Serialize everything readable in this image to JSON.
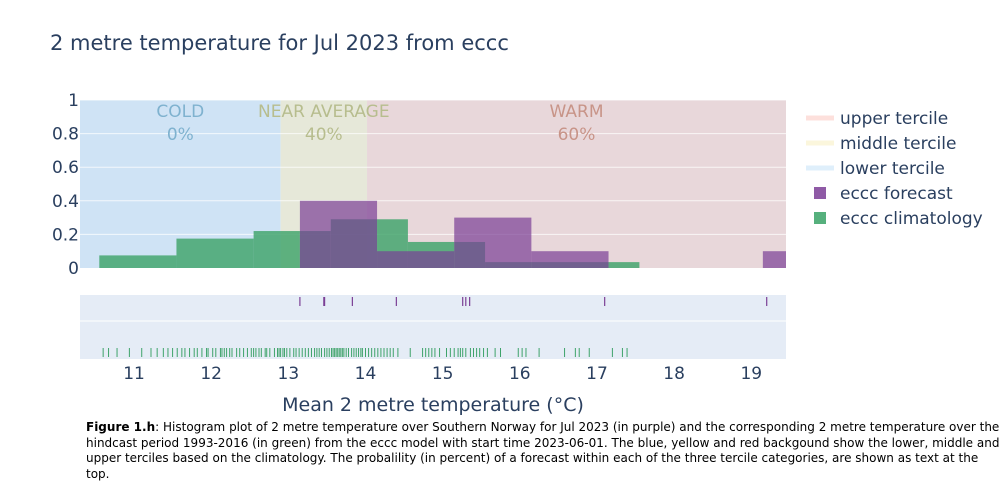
{
  "chart_data": {
    "type": "bar",
    "title": "2 metre temperature for Jul 2023 from eccc",
    "xlabel": "Mean 2 metre temperature (°C)",
    "ylabel": "",
    "xlim": [
      10.3,
      19.45
    ],
    "ylim": [
      0,
      1
    ],
    "x_ticks": [
      11,
      12,
      13,
      14,
      15,
      16,
      17,
      18,
      19
    ],
    "y_ticks": [
      0,
      0.2,
      0.4,
      0.6,
      0.8,
      1
    ],
    "y_tick_labels": [
      "0",
      "0.2",
      "0.4",
      "0.6",
      "0.8",
      "1"
    ],
    "grid": true,
    "legend_position": "right",
    "terciles": [
      {
        "label": "COLD",
        "percent": "0%",
        "from": 10.3,
        "to": 12.9,
        "fill": "#cfe3f5",
        "text_color": "#7fb2cf"
      },
      {
        "label": "NEAR AVERAGE",
        "percent": "40%",
        "from": 12.9,
        "to": 14.02,
        "fill": "#e6e8d9",
        "text_color": "#b7bd8e"
      },
      {
        "label": "WARM",
        "percent": "60%",
        "from": 14.02,
        "to": 19.45,
        "fill": "#e8d7da",
        "text_color": "#c89488"
      }
    ],
    "series": [
      {
        "name": "eccc climatology",
        "color": "#3ea36a",
        "bins": [
          {
            "x0": 10.55,
            "x1": 11.55,
            "y": 0.075
          },
          {
            "x0": 11.55,
            "x1": 12.55,
            "y": 0.175
          },
          {
            "x0": 12.55,
            "x1": 13.15,
            "y": 0.22
          },
          {
            "x0": 13.15,
            "x1": 13.55,
            "y": 0.22
          },
          {
            "x0": 13.55,
            "x1": 14.15,
            "y": 0.29
          },
          {
            "x0": 14.15,
            "x1": 14.55,
            "y": 0.29
          },
          {
            "x0": 14.55,
            "x1": 15.15,
            "y": 0.155
          },
          {
            "x0": 15.15,
            "x1": 15.55,
            "y": 0.155
          },
          {
            "x0": 15.55,
            "x1": 16.15,
            "y": 0.035
          },
          {
            "x0": 16.15,
            "x1": 17.15,
            "y": 0.035
          },
          {
            "x0": 17.15,
            "x1": 17.55,
            "y": 0.035
          }
        ],
        "rug": [
          10.6,
          10.67,
          10.78,
          10.94,
          11.1,
          11.22,
          11.3,
          11.38,
          11.44,
          11.5,
          11.56,
          11.62,
          11.66,
          11.72,
          11.78,
          11.82,
          11.88,
          11.94,
          11.96,
          12.02,
          12.06,
          12.12,
          12.14,
          12.17,
          12.2,
          12.24,
          12.27,
          12.33,
          12.37,
          12.42,
          12.47,
          12.52,
          12.55,
          12.58,
          12.62,
          12.65,
          12.7,
          12.72,
          12.76,
          12.82,
          12.86,
          12.88,
          12.9,
          12.93,
          12.95,
          12.98,
          13.02,
          13.07,
          13.1,
          13.14,
          13.18,
          13.22,
          13.26,
          13.3,
          13.34,
          13.37,
          13.4,
          13.43,
          13.47,
          13.5,
          13.53,
          13.56,
          13.58,
          13.6,
          13.62,
          13.64,
          13.66,
          13.68,
          13.7,
          13.72,
          13.75,
          13.78,
          13.82,
          13.85,
          13.88,
          13.91,
          13.94,
          13.96,
          14.0,
          14.04,
          14.08,
          14.12,
          14.16,
          14.2,
          14.24,
          14.28,
          14.32,
          14.36,
          14.42,
          14.58,
          14.74,
          14.78,
          14.82,
          14.86,
          14.9,
          14.96,
          15.05,
          15.1,
          15.15,
          15.2,
          15.23,
          15.26,
          15.3,
          15.36,
          15.4,
          15.44,
          15.48,
          15.53,
          15.58,
          15.68,
          15.75,
          15.98,
          16.03,
          16.08,
          16.25,
          16.58,
          16.72,
          16.77,
          16.9,
          17.2,
          17.33,
          17.39
        ]
      },
      {
        "name": "eccc forecast",
        "color": "#7b3f95",
        "bins": [
          {
            "x0": 13.15,
            "x1": 14.15,
            "y": 0.4
          },
          {
            "x0": 14.15,
            "x1": 15.15,
            "y": 0.1
          },
          {
            "x0": 15.15,
            "x1": 16.15,
            "y": 0.3
          },
          {
            "x0": 16.15,
            "x1": 17.15,
            "y": 0.1
          },
          {
            "x0": 19.15,
            "x1": 20.15,
            "y": 0.1
          }
        ],
        "rug": [
          13.15,
          13.46,
          13.47,
          13.83,
          14.4,
          15.26,
          15.3,
          15.35,
          17.1,
          19.2
        ]
      }
    ],
    "legend": [
      {
        "label": "upper tercile",
        "kind": "line",
        "color": "#fde0dc"
      },
      {
        "label": "middle tercile",
        "kind": "line",
        "color": "#fbf6dc"
      },
      {
        "label": "lower tercile",
        "kind": "line",
        "color": "#dfeffb"
      },
      {
        "label": "eccc forecast",
        "kind": "box",
        "color": "#8f5aa6"
      },
      {
        "label": "eccc climatology",
        "kind": "box",
        "color": "#56b07d"
      }
    ]
  },
  "caption": {
    "label": "Figure 1.h",
    "text": ": Histogram plot of 2 metre temperature over Southern Norway for Jul 2023 (in purple) and the corresponding 2 metre temperature over the hindcast period 1993-2016 (in green) from the eccc model with start time 2023-06-01. The blue, yellow and red backgound show the lower, middle and upper terciles based on the climatology. The probalility (in percent) of a forecast within each of the three tercile categories, are shown as text at the top."
  }
}
